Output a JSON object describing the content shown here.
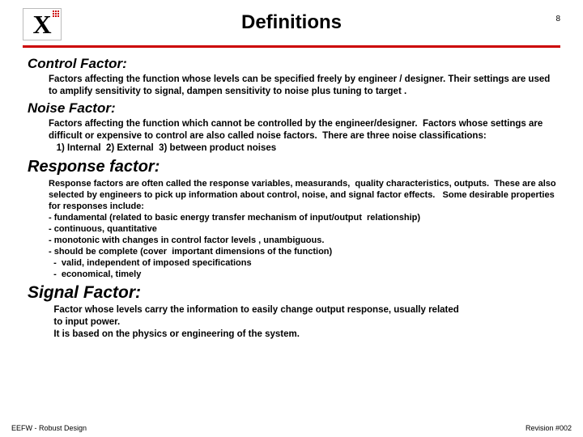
{
  "brand_color": "#cc0000",
  "page_number": "8",
  "title": "Definitions",
  "sections": {
    "control": {
      "heading": "Control Factor:",
      "body": "Factors affecting the function whose levels can be specified freely by   engineer / designer.   Their settings are used to  amplify sensitivity to signal,  dampen sensitivity to noise plus tuning to target ."
    },
    "noise": {
      "heading": "Noise Factor:",
      "body": "Factors affecting the function which cannot be controlled by the engineer/designer.  Factors whose settings are difficult or expensive to control are also called noise factors.  There are three noise classifications:\n   1) Internal  2) External  3) between product noises"
    },
    "response": {
      "heading": "Response factor:",
      "body": "Response factors are often called the response variables, measurands,  quality characteristics, outputs.  These are also selected by engineers to pick up information about control, noise, and signal factor effects.   Some desirable properties for responses include:\n- fundamental (related to basic energy transfer mechanism of input/output  relationship)\n- continuous, quantitative\n- monotonic with changes in control factor levels , unambiguous.\n- should be complete (cover  important dimensions of the function)\n  -  valid, independent of imposed specifications\n  -  economical, timely"
    },
    "signal": {
      "heading": "Signal Factor:",
      "body": "  Factor whose levels carry the information to easily change output response, usually related\n  to input power.\n  It is based on the physics or engineering of the system."
    }
  },
  "footer": {
    "left": "EEFW - Robust Design",
    "right": "Revision #002"
  }
}
